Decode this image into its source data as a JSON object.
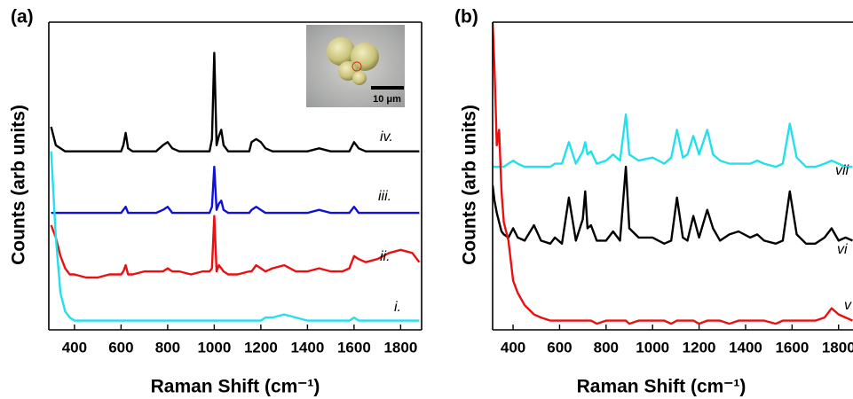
{
  "chart_data": [
    {
      "type": "line",
      "panel_label": "(a)",
      "ylabel": "Counts (arb units)",
      "xlabel": "Raman Shift (cm⁻¹)",
      "inset_scale_label": "10 μm",
      "xlim": [
        290,
        1890
      ],
      "ylim": [
        0,
        100
      ],
      "xticks": [
        400,
        600,
        800,
        1000,
        1200,
        1400,
        1600,
        1800
      ],
      "x": [
        300,
        320,
        340,
        360,
        380,
        400,
        450,
        500,
        550,
        600,
        610,
        620,
        630,
        650,
        700,
        750,
        780,
        800,
        820,
        850,
        900,
        950,
        980,
        990,
        1000,
        1010,
        1020,
        1030,
        1040,
        1060,
        1100,
        1150,
        1160,
        1180,
        1200,
        1220,
        1250,
        1300,
        1350,
        1400,
        1450,
        1500,
        1550,
        1580,
        1600,
        1620,
        1650,
        1700,
        1750,
        1800,
        1850,
        1880
      ],
      "series": [
        {
          "name": "iv.",
          "color": "#000000",
          "values": [
            66,
            60,
            59,
            58,
            58,
            58,
            58,
            58,
            58,
            58,
            60,
            64,
            59,
            58,
            58,
            58,
            60,
            61,
            59,
            58,
            58,
            58,
            58,
            62,
            90,
            60,
            63,
            65,
            60,
            58,
            58,
            58,
            61,
            62,
            61,
            59,
            58,
            58,
            58,
            58,
            59,
            58,
            58,
            58,
            61,
            59,
            58,
            58,
            58,
            58,
            58,
            58
          ]
        },
        {
          "name": "iii.",
          "color": "#1010d8",
          "values": [
            38,
            38,
            38,
            38,
            38,
            38,
            38,
            38,
            38,
            38,
            39,
            40,
            38,
            38,
            38,
            38,
            39,
            40,
            38,
            38,
            38,
            38,
            38,
            40,
            53,
            39,
            41,
            42,
            39,
            38,
            38,
            38,
            39,
            40,
            39,
            38,
            38,
            38,
            38,
            38,
            39,
            38,
            38,
            38,
            40,
            38,
            38,
            38,
            38,
            38,
            38,
            38
          ]
        },
        {
          "name": "ii.",
          "color": "#e81010",
          "values": [
            34,
            30,
            24,
            20,
            18,
            18,
            17,
            17,
            18,
            18,
            19,
            21,
            18,
            18,
            19,
            19,
            19,
            20,
            19,
            19,
            18,
            19,
            19,
            20,
            37,
            19,
            21,
            20,
            19,
            18,
            18,
            19,
            19,
            21,
            20,
            19,
            20,
            21,
            19,
            19,
            20,
            19,
            19,
            20,
            24,
            23,
            22,
            23,
            25,
            26,
            25,
            22
          ]
        },
        {
          "name": "i.",
          "color": "#22e0ec",
          "values": [
            58,
            30,
            12,
            6,
            4,
            3,
            3,
            3,
            3,
            3,
            3,
            3,
            3,
            3,
            3,
            3,
            3,
            3,
            3,
            3,
            3,
            3,
            3,
            3,
            3,
            3,
            3,
            3,
            3,
            3,
            3,
            3,
            3,
            3,
            3,
            4,
            4,
            5,
            4,
            3,
            3,
            3,
            3,
            3,
            4,
            3,
            3,
            3,
            3,
            3,
            3,
            3
          ]
        }
      ]
    },
    {
      "type": "line",
      "panel_label": "(b)",
      "ylabel": "Counts (arb units)",
      "xlabel": "Raman Shift (cm⁻¹)",
      "xlim": [
        312,
        1862
      ],
      "ylim": [
        0,
        100
      ],
      "xticks": [
        400,
        600,
        800,
        1000,
        1200,
        1400,
        1600,
        1800
      ],
      "x": [
        312,
        320,
        330,
        340,
        350,
        360,
        380,
        400,
        420,
        450,
        490,
        520,
        560,
        580,
        610,
        640,
        670,
        700,
        710,
        720,
        735,
        760,
        800,
        830,
        860,
        885,
        900,
        940,
        1000,
        1050,
        1080,
        1105,
        1130,
        1150,
        1175,
        1200,
        1235,
        1260,
        1290,
        1330,
        1370,
        1420,
        1450,
        1480,
        1530,
        1560,
        1590,
        1620,
        1660,
        1700,
        1740,
        1770,
        1800,
        1830,
        1860
      ],
      "series": [
        {
          "name": "vii",
          "color": "#22e0ec",
          "values": [
            53,
            53,
            53,
            53,
            53,
            53,
            54,
            55,
            54,
            53,
            53,
            53,
            53,
            54,
            54,
            61,
            54,
            58,
            61,
            57,
            58,
            54,
            55,
            57,
            55,
            70,
            57,
            55,
            56,
            54,
            56,
            65,
            56,
            57,
            63,
            57,
            65,
            57,
            55,
            54,
            54,
            54,
            55,
            54,
            53,
            54,
            67,
            56,
            53,
            53,
            54,
            55,
            54,
            53,
            53
          ]
        },
        {
          "name": "vi",
          "color": "#000000",
          "values": [
            47,
            42,
            38,
            35,
            32,
            31,
            30,
            33,
            30,
            29,
            34,
            29,
            28,
            30,
            28,
            43,
            29,
            36,
            45,
            33,
            34,
            29,
            29,
            32,
            29,
            53,
            33,
            30,
            30,
            28,
            29,
            43,
            30,
            29,
            37,
            30,
            39,
            33,
            29,
            31,
            32,
            30,
            31,
            29,
            28,
            29,
            45,
            31,
            28,
            28,
            30,
            33,
            29,
            30,
            29
          ]
        },
        {
          "name": "v",
          "color": "#e81010",
          "values": [
            100,
            85,
            60,
            65,
            45,
            35,
            29,
            16,
            12,
            8,
            5,
            4,
            3,
            3,
            3,
            3,
            3,
            3,
            3,
            3,
            3,
            2,
            3,
            3,
            3,
            3,
            2,
            3,
            3,
            3,
            2,
            3,
            3,
            3,
            3,
            2,
            3,
            3,
            3,
            2,
            3,
            3,
            3,
            3,
            2,
            3,
            3,
            3,
            3,
            3,
            4,
            7,
            5,
            4,
            3
          ]
        }
      ]
    }
  ]
}
